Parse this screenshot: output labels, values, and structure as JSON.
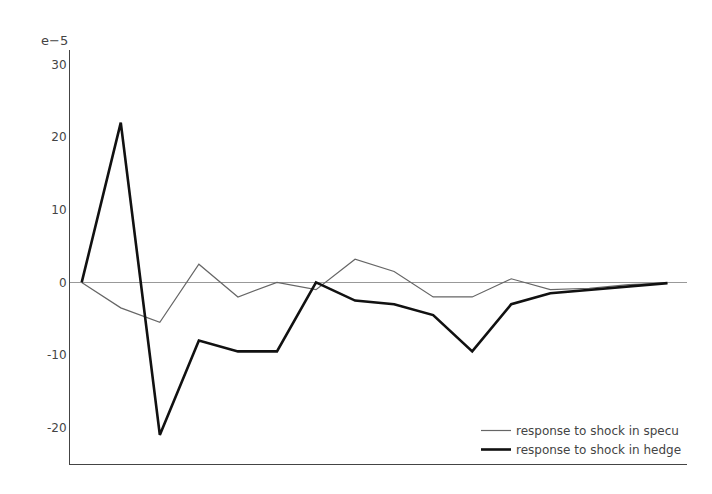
{
  "chart_data": {
    "type": "line",
    "x": [
      0,
      1,
      2,
      3,
      4,
      5,
      6,
      7,
      8,
      9,
      10,
      11,
      12,
      13,
      14,
      15
    ],
    "series": [
      {
        "name": "response to shock in specu",
        "color": "#666666",
        "values": [
          0,
          -3.5,
          -5.5,
          2.5,
          -2.0,
          0.0,
          -1.0,
          3.2,
          1.5,
          -2.0,
          -2.0,
          0.5,
          -1.0,
          -0.8,
          -0.3,
          -0.1
        ]
      },
      {
        "name": "response to shock in hedge",
        "color": "#111111",
        "values": [
          0,
          22.0,
          -21.0,
          -8.0,
          -9.5,
          -9.5,
          0.0,
          -2.5,
          -3.0,
          -4.5,
          -9.5,
          -3.0,
          -1.5,
          -1.0,
          -0.5,
          -0.1
        ]
      }
    ],
    "xlim": [
      -0.3,
      15.5
    ],
    "ylim": [
      -25,
      32
    ],
    "yticks": [
      -20,
      -10,
      0,
      10,
      20,
      30
    ],
    "annotations": [
      "e−5"
    ],
    "legend": "lower right",
    "grid": false,
    "tick_labels": "y"
  }
}
